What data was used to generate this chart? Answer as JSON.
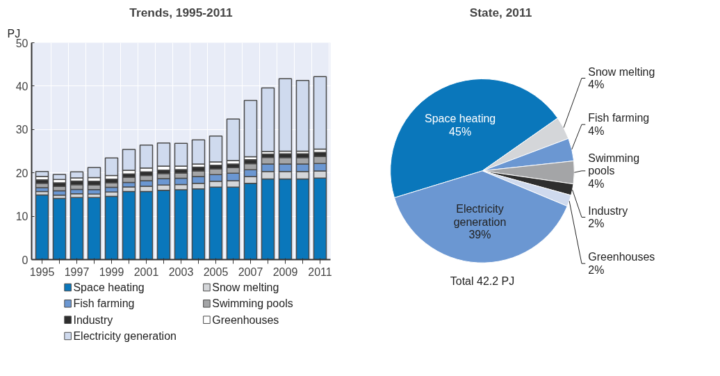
{
  "chart_data": [
    {
      "type": "bar",
      "title": "Trends, 1995-2011",
      "ylabel": "PJ",
      "stacked": true,
      "categories": [
        "1995",
        null,
        "1997",
        null,
        "1999",
        null,
        "2001",
        null,
        "2003",
        null,
        "2005",
        null,
        "2007",
        null,
        "2009",
        null,
        "2011"
      ],
      "ylim": [
        0,
        50
      ],
      "yticks": [
        0,
        10,
        20,
        30,
        40,
        50
      ],
      "grid": true,
      "legend": "bottom",
      "series": [
        {
          "name": "Space heating",
          "color": "#0a77bb",
          "values": [
            14.9,
            14.1,
            14.3,
            14.3,
            14.6,
            15.7,
            15.7,
            16.0,
            16.1,
            16.3,
            16.7,
            16.7,
            17.6,
            18.6,
            18.6,
            18.6,
            18.8
          ]
        },
        {
          "name": "Snow melting",
          "color": "#d4d6d9",
          "values": [
            0.8,
            0.75,
            0.9,
            0.8,
            1.0,
            1.05,
            1.2,
            1.2,
            1.2,
            1.3,
            1.35,
            1.5,
            1.55,
            1.7,
            1.7,
            1.7,
            1.65
          ]
        },
        {
          "name": "Fish farming",
          "color": "#6b97d2",
          "values": [
            0.9,
            1.0,
            1.0,
            1.05,
            1.05,
            1.05,
            1.3,
            1.45,
            1.45,
            1.55,
            1.55,
            1.7,
            1.55,
            1.75,
            1.75,
            1.75,
            1.7
          ]
        },
        {
          "name": "Swimming pools",
          "color": "#a4a5a7",
          "values": [
            1.0,
            1.0,
            1.05,
            1.05,
            1.05,
            1.2,
            1.2,
            1.2,
            1.2,
            1.3,
            1.3,
            1.3,
            1.4,
            1.5,
            1.45,
            1.45,
            1.6
          ]
        },
        {
          "name": "Industry",
          "color": "#2e2e2e",
          "values": [
            0.8,
            0.85,
            0.85,
            0.85,
            0.85,
            0.75,
            0.85,
            0.8,
            0.8,
            0.85,
            0.85,
            0.85,
            0.95,
            0.75,
            0.9,
            0.9,
            0.95
          ]
        },
        {
          "name": "Greenhouses",
          "color": "#ffffff",
          "values": [
            0.8,
            0.75,
            0.75,
            0.85,
            0.85,
            0.85,
            0.85,
            0.9,
            0.8,
            0.75,
            0.75,
            0.8,
            0.65,
            0.6,
            0.6,
            0.6,
            0.8
          ]
        },
        {
          "name": "Electricity generation",
          "color": "#cfdaee",
          "values": [
            1.1,
            1.2,
            1.4,
            2.35,
            4.05,
            4.8,
            5.3,
            5.35,
            5.25,
            5.55,
            6.0,
            9.55,
            13.0,
            14.7,
            16.7,
            16.3,
            16.7
          ]
        }
      ]
    },
    {
      "type": "pie",
      "title": "State, 2011",
      "categories": [
        "Space heating",
        "Snow melting",
        "Fish farming",
        "Swimming pools",
        "Industry",
        "Greenhouses",
        "Electricity generation"
      ],
      "values": [
        45,
        4,
        4,
        4,
        2,
        2,
        39
      ],
      "colors": [
        "#0a77bb",
        "#d4d6d9",
        "#6b97d2",
        "#a4a5a7",
        "#2e2e2e",
        "#cfdaee",
        "#6b97d2"
      ],
      "value_labels": [
        "45%",
        "4%",
        "4%",
        "4%",
        "2%",
        "2%",
        "39%"
      ],
      "annotations": [
        "Total 42.2 PJ"
      ]
    }
  ]
}
